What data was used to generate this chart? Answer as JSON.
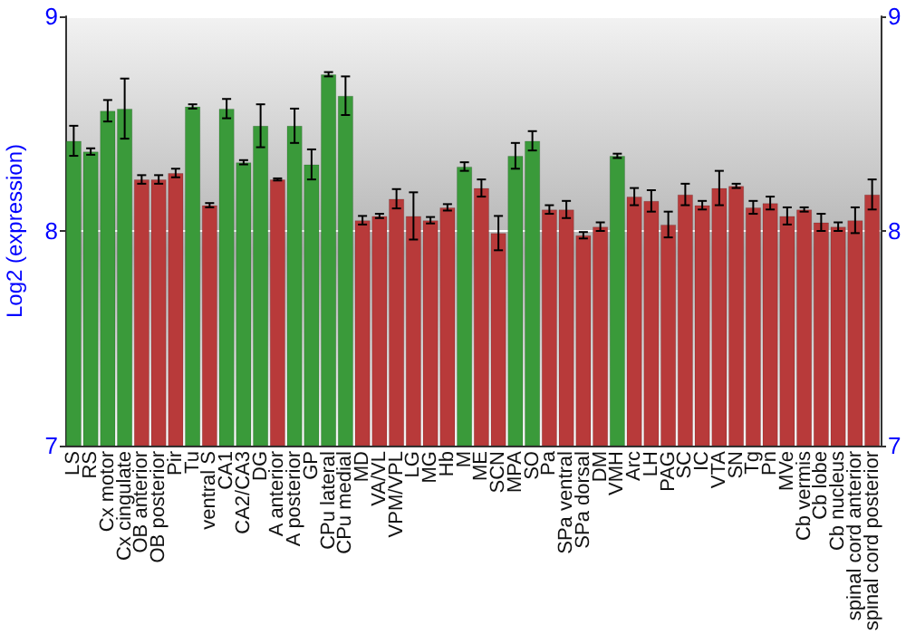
{
  "chart_data": {
    "type": "bar",
    "ylabel": "Log2 (expression)",
    "categories": [
      "LS",
      "RS",
      "Cx motor",
      "Cx cingulate",
      "OB anterior",
      "OB posterior",
      "Pir",
      "Tu",
      "ventral S",
      "CA1",
      "CA2/CA3",
      "DG",
      "A anterior",
      "A posterior",
      "GP",
      "CPu lateral",
      "CPu medial",
      "MD",
      "VA/VL",
      "VPM/VPL",
      "LG",
      "MG",
      "Hb",
      "M",
      "ME",
      "SCN",
      "MPA",
      "SO",
      "Pa",
      "SPa ventral",
      "SPa dorsal",
      "DM",
      "VMH",
      "Arc",
      "LH",
      "PAG",
      "SC",
      "IC",
      "VTA",
      "SN",
      "Tg",
      "Pn",
      "MVe",
      "Cb vermis",
      "Cb lobe",
      "Cb nucleus",
      "spinal cord anterior",
      "spinal cord posterior"
    ],
    "values": [
      8.42,
      8.37,
      8.56,
      8.57,
      8.24,
      8.24,
      8.27,
      8.58,
      8.12,
      8.57,
      8.32,
      8.49,
      8.24,
      8.49,
      8.31,
      8.73,
      8.63,
      8.05,
      8.07,
      8.15,
      8.07,
      8.05,
      8.11,
      8.3,
      8.2,
      7.99,
      8.35,
      8.42,
      8.1,
      8.1,
      7.98,
      8.02,
      8.35,
      8.16,
      8.14,
      8.03,
      8.17,
      8.12,
      8.2,
      8.21,
      8.11,
      8.13,
      8.07,
      8.1,
      8.04,
      8.02,
      8.05,
      8.17
    ],
    "errors": [
      0.07,
      0.015,
      0.05,
      0.14,
      0.02,
      0.02,
      0.02,
      0.01,
      0.01,
      0.045,
      0.01,
      0.1,
      0.005,
      0.08,
      0.07,
      0.01,
      0.09,
      0.02,
      0.01,
      0.045,
      0.11,
      0.015,
      0.015,
      0.02,
      0.04,
      0.08,
      0.06,
      0.045,
      0.02,
      0.04,
      0.015,
      0.02,
      0.01,
      0.04,
      0.05,
      0.06,
      0.05,
      0.02,
      0.08,
      0.01,
      0.03,
      0.03,
      0.04,
      0.01,
      0.04,
      0.02,
      0.06,
      0.07
    ],
    "colors": [
      "#3a9a3a",
      "#3a9a3a",
      "#3a9a3a",
      "#3a9a3a",
      "#b83a3a",
      "#b83a3a",
      "#b83a3a",
      "#3a9a3a",
      "#b83a3a",
      "#3a9a3a",
      "#3a9a3a",
      "#3a9a3a",
      "#b83a3a",
      "#3a9a3a",
      "#3a9a3a",
      "#3a9a3a",
      "#3a9a3a",
      "#b83a3a",
      "#b83a3a",
      "#b83a3a",
      "#b83a3a",
      "#b83a3a",
      "#b83a3a",
      "#3a9a3a",
      "#b83a3a",
      "#b83a3a",
      "#3a9a3a",
      "#3a9a3a",
      "#b83a3a",
      "#b83a3a",
      "#b83a3a",
      "#b83a3a",
      "#3a9a3a",
      "#b83a3a",
      "#b83a3a",
      "#b83a3a",
      "#b83a3a",
      "#b83a3a",
      "#b83a3a",
      "#b83a3a",
      "#b83a3a",
      "#b83a3a",
      "#b83a3a",
      "#b83a3a",
      "#b83a3a",
      "#b83a3a",
      "#b83a3a",
      "#b83a3a"
    ],
    "ylim": [
      7,
      9
    ],
    "yticks": [
      7,
      8,
      9
    ],
    "y2lim": [
      7,
      9
    ],
    "y2ticks": [
      7,
      8,
      9
    ],
    "grid": "y"
  }
}
